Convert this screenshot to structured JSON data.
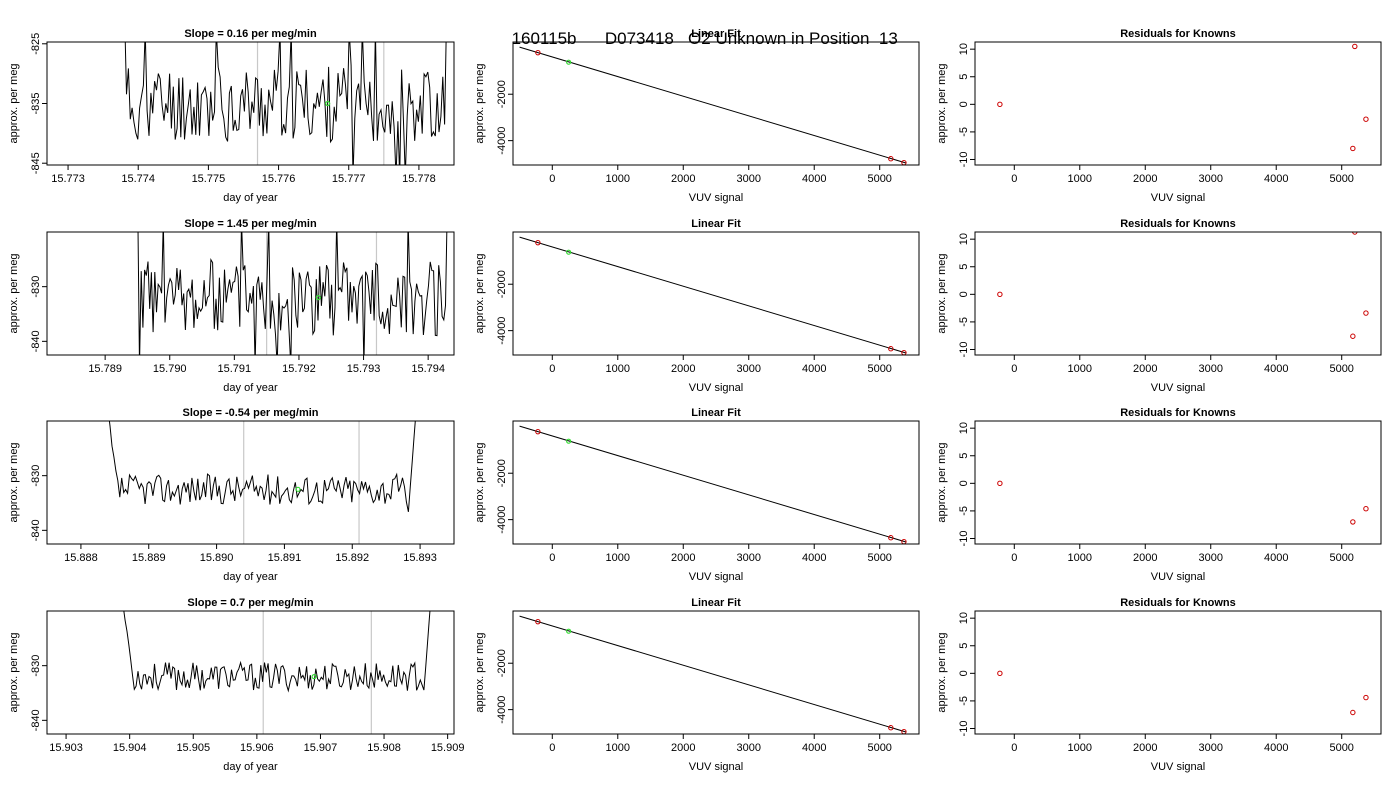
{
  "header": {
    "run_id": "160115b",
    "sample_id": "D073418",
    "description": "O2 Unknown in Position  13"
  },
  "colors": {
    "trace": "#000000",
    "known_points": "#cc0000",
    "unknown_point": "#33dd33",
    "marker_lines": "#c8c8c8",
    "axes": "#000000"
  },
  "chart_data": [
    {
      "type": "line",
      "panel": "time-series",
      "row": 1,
      "title_prefix": "Slope = ",
      "slope": "0.16",
      "title_suffix": "per meg/min",
      "xlabel": "day of year",
      "ylabel": "approx. per meg",
      "xlim": [
        15.7727,
        15.7785
      ],
      "ylim": [
        -845.3,
        -824.7
      ],
      "xticks": [
        "15.773",
        "15.774",
        "15.775",
        "15.776",
        "15.777",
        "15.778"
      ],
      "yticks": [
        "-825",
        "-835",
        "-845"
      ],
      "markers_x": [
        15.7757,
        15.7775
      ],
      "unknown_point": {
        "x": 15.7767,
        "y": -835
      },
      "trace": {
        "x_start": 15.7737,
        "x_end": 15.7785,
        "mean": -835,
        "amplitude": 6.5,
        "n": 180,
        "edge": "spikes",
        "seed": 11
      }
    },
    {
      "type": "scatter",
      "panel": "linear-fit",
      "row": 1,
      "title": "Linear Fit",
      "xlabel": "VUV signal",
      "ylabel": "approx. per meg",
      "xlim": [
        -600,
        5600
      ],
      "ylim": [
        -5050,
        250
      ],
      "xticks": [
        "0",
        "1000",
        "2000",
        "3000",
        "4000",
        "5000"
      ],
      "yticks": [
        "-2000",
        "-4000"
      ],
      "known_points": [
        {
          "x": -220,
          "y": -210
        },
        {
          "x": 5170,
          "y": -4780
        },
        {
          "x": 5370,
          "y": -4950
        }
      ],
      "unknown_point": {
        "x": 250,
        "y": -620
      },
      "fit_line": {
        "x": [
          -500,
          5400
        ],
        "y": [
          29,
          -4965
        ]
      }
    },
    {
      "type": "scatter",
      "panel": "residuals",
      "row": 1,
      "title": "Residuals for Knowns",
      "xlabel": "VUV signal",
      "ylabel": "approx. per meg",
      "xlim": [
        -600,
        5600
      ],
      "ylim": [
        -11.0,
        11.3
      ],
      "xticks": [
        "0",
        "1000",
        "2000",
        "3000",
        "4000",
        "5000"
      ],
      "yticks": [
        "10",
        "5",
        "0",
        "-5",
        "-10"
      ],
      "known_points": [
        {
          "x": -220,
          "y": 0
        },
        {
          "x": 5170,
          "y": -8
        },
        {
          "x": 5200,
          "y": 10.5
        },
        {
          "x": 5370,
          "y": -2.7
        }
      ]
    },
    {
      "type": "line",
      "panel": "time-series",
      "row": 2,
      "title_prefix": "Slope = ",
      "slope": "1.45",
      "title_suffix": "per meg/min",
      "xlabel": "day of year",
      "ylabel": "approx. per meg",
      "xlim": [
        15.7881,
        15.7944
      ],
      "ylim": [
        -842.5,
        -820.0
      ],
      "xticks": [
        "15.789",
        "15.790",
        "15.791",
        "15.792",
        "15.793",
        "15.794"
      ],
      "yticks": [
        "-830",
        "-840"
      ],
      "markers_x": [
        15.7915,
        15.7932
      ],
      "unknown_point": {
        "x": 15.7923,
        "y": -832
      },
      "trace": {
        "x_start": 15.7894,
        "x_end": 15.7944,
        "mean": -832,
        "amplitude": 7,
        "n": 190,
        "edge": "spikes",
        "seed": 23
      }
    },
    {
      "type": "scatter",
      "panel": "linear-fit",
      "row": 2,
      "title": "Linear Fit",
      "xlabel": "VUV signal",
      "ylabel": "approx. per meg",
      "xlim": [
        -600,
        5600
      ],
      "ylim": [
        -5050,
        250
      ],
      "xticks": [
        "0",
        "1000",
        "2000",
        "3000",
        "4000",
        "5000"
      ],
      "yticks": [
        "-2000",
        "-4000"
      ],
      "known_points": [
        {
          "x": -220,
          "y": -210
        },
        {
          "x": 5170,
          "y": -4780
        },
        {
          "x": 5370,
          "y": -4950
        }
      ],
      "unknown_point": {
        "x": 250,
        "y": -620
      },
      "fit_line": {
        "x": [
          -500,
          5400
        ],
        "y": [
          29,
          -4965
        ]
      }
    },
    {
      "type": "scatter",
      "panel": "residuals",
      "row": 2,
      "title": "Residuals for Knowns",
      "xlabel": "VUV signal",
      "ylabel": "approx. per meg",
      "xlim": [
        -600,
        5600
      ],
      "ylim": [
        -11.0,
        11.3
      ],
      "xticks": [
        "0",
        "1000",
        "2000",
        "3000",
        "4000",
        "5000"
      ],
      "yticks": [
        "10",
        "5",
        "0",
        "-5",
        "-10"
      ],
      "known_points": [
        {
          "x": -220,
          "y": 0
        },
        {
          "x": 5170,
          "y": -7.6
        },
        {
          "x": 5200,
          "y": 11.3
        },
        {
          "x": 5370,
          "y": -3.4
        }
      ]
    },
    {
      "type": "line",
      "panel": "time-series",
      "row": 3,
      "title_prefix": "Slope = ",
      "slope": "-0.54",
      "title_suffix": "per meg/min",
      "xlabel": "day of year",
      "ylabel": "approx. per meg",
      "xlim": [
        15.8875,
        15.8935
      ],
      "ylim": [
        -842.5,
        -820.0
      ],
      "xticks": [
        "15.888",
        "15.889",
        "15.890",
        "15.891",
        "15.892",
        "15.893"
      ],
      "yticks": [
        "-830",
        "-840"
      ],
      "markers_x": [
        15.8904,
        15.8921
      ],
      "unknown_point": {
        "x": 15.8912,
        "y": -832.5
      },
      "trace": {
        "x_start": 15.8884,
        "x_end": 15.893,
        "mean": -832.5,
        "amplitude": 2.8,
        "n": 160,
        "edge": "ramp",
        "seed": 37
      }
    },
    {
      "type": "scatter",
      "panel": "linear-fit",
      "row": 3,
      "title": "Linear Fit",
      "xlabel": "VUV signal",
      "ylabel": "approx. per meg",
      "xlim": [
        -600,
        5600
      ],
      "ylim": [
        -5050,
        250
      ],
      "xticks": [
        "0",
        "1000",
        "2000",
        "3000",
        "4000",
        "5000"
      ],
      "yticks": [
        "-2000",
        "-4000"
      ],
      "known_points": [
        {
          "x": -220,
          "y": -210
        },
        {
          "x": 5170,
          "y": -4780
        },
        {
          "x": 5370,
          "y": -4950
        }
      ],
      "unknown_point": {
        "x": 250,
        "y": -620
      },
      "fit_line": {
        "x": [
          -500,
          5400
        ],
        "y": [
          29,
          -4965
        ]
      }
    },
    {
      "type": "scatter",
      "panel": "residuals",
      "row": 3,
      "title": "Residuals for Knowns",
      "xlabel": "VUV signal",
      "ylabel": "approx. per meg",
      "xlim": [
        -600,
        5600
      ],
      "ylim": [
        -11.0,
        11.3
      ],
      "xticks": [
        "0",
        "1000",
        "2000",
        "3000",
        "4000",
        "5000"
      ],
      "yticks": [
        "10",
        "5",
        "0",
        "-5",
        "-10"
      ],
      "known_points": [
        {
          "x": -220,
          "y": 0
        },
        {
          "x": 5170,
          "y": -7
        },
        {
          "x": 5370,
          "y": -4.6
        }
      ]
    },
    {
      "type": "line",
      "panel": "time-series",
      "row": 4,
      "title_prefix": "Slope = ",
      "slope": "0.7",
      "title_suffix": "per meg/min",
      "xlabel": "day of year",
      "ylabel": "approx. per meg",
      "xlim": [
        15.9027,
        15.9091
      ],
      "ylim": [
        -842.5,
        -820.0
      ],
      "xticks": [
        "15.903",
        "15.904",
        "15.905",
        "15.906",
        "15.907",
        "15.908",
        "15.909"
      ],
      "yticks": [
        "-830",
        "-840"
      ],
      "markers_x": [
        15.9061,
        15.9078
      ],
      "unknown_point": {
        "x": 15.9069,
        "y": -832
      },
      "trace": {
        "x_start": 15.9039,
        "x_end": 15.9088,
        "mean": -832,
        "amplitude": 2.6,
        "n": 170,
        "edge": "ramp",
        "seed": 53
      }
    },
    {
      "type": "scatter",
      "panel": "linear-fit",
      "row": 4,
      "title": "Linear Fit",
      "xlabel": "VUV signal",
      "ylabel": "approx. per meg",
      "xlim": [
        -600,
        5600
      ],
      "ylim": [
        -5050,
        250
      ],
      "xticks": [
        "0",
        "1000",
        "2000",
        "3000",
        "4000",
        "5000"
      ],
      "yticks": [
        "-2000",
        "-4000"
      ],
      "known_points": [
        {
          "x": -220,
          "y": -210
        },
        {
          "x": 5170,
          "y": -4780
        },
        {
          "x": 5370,
          "y": -4950
        }
      ],
      "unknown_point": {
        "x": 250,
        "y": -620
      },
      "fit_line": {
        "x": [
          -500,
          5400
        ],
        "y": [
          29,
          -4965
        ]
      }
    },
    {
      "type": "scatter",
      "panel": "residuals",
      "row": 4,
      "title": "Residuals for Knowns",
      "xlabel": "VUV signal",
      "ylabel": "approx. per meg",
      "xlim": [
        -600,
        5600
      ],
      "ylim": [
        -11.0,
        11.3
      ],
      "xticks": [
        "0",
        "1000",
        "2000",
        "3000",
        "4000",
        "5000"
      ],
      "yticks": [
        "10",
        "5",
        "0",
        "-5",
        "-10"
      ],
      "known_points": [
        {
          "x": -220,
          "y": 0
        },
        {
          "x": 5170,
          "y": -7.1
        },
        {
          "x": 5370,
          "y": -4.4
        }
      ]
    }
  ]
}
